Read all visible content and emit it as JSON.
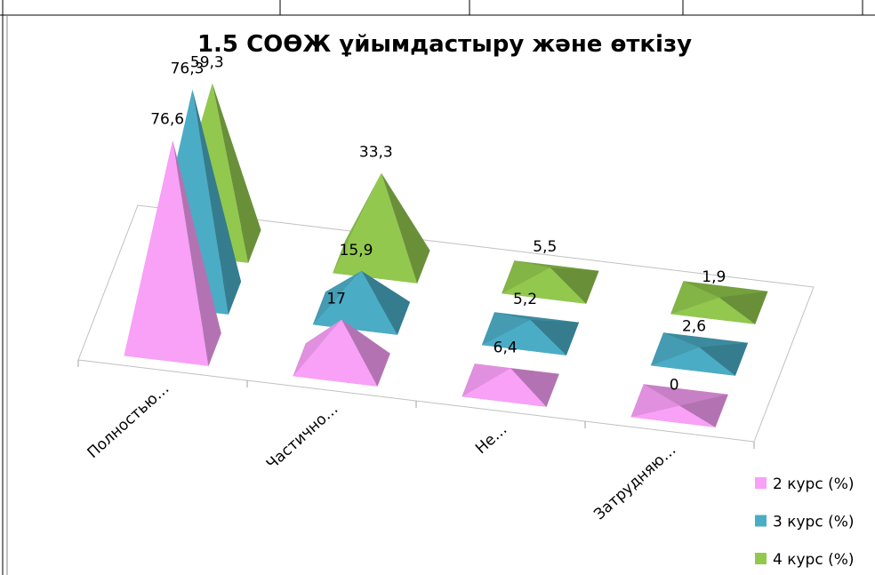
{
  "chart_data": {
    "type": "pyramid3d",
    "title": "1.5 СОӨЖ ұйымдастыру және өткізу",
    "categories": [
      "Полностью…",
      "Частично…",
      "Не…",
      "Затрудняю…"
    ],
    "series": [
      {
        "name": "2 курс (%)",
        "color": "#f9a0f7",
        "values": [
          76.6,
          17,
          6.4,
          0
        ],
        "value_labels": [
          "76,6",
          "17",
          "6,4",
          "0"
        ]
      },
      {
        "name": "3 курс (%)",
        "color": "#4bacc6",
        "values": [
          76.3,
          15.9,
          5.2,
          2.6
        ],
        "value_labels": [
          "76,3",
          "15,9",
          "5,2",
          "2,6"
        ]
      },
      {
        "name": "4 курс (%)",
        "color": "#92c84e",
        "values": [
          59.3,
          33.3,
          5.5,
          1.9
        ],
        "value_labels": [
          "59,3",
          "33,3",
          "5,5",
          "1,9"
        ]
      }
    ],
    "legend": "right-bottom"
  }
}
